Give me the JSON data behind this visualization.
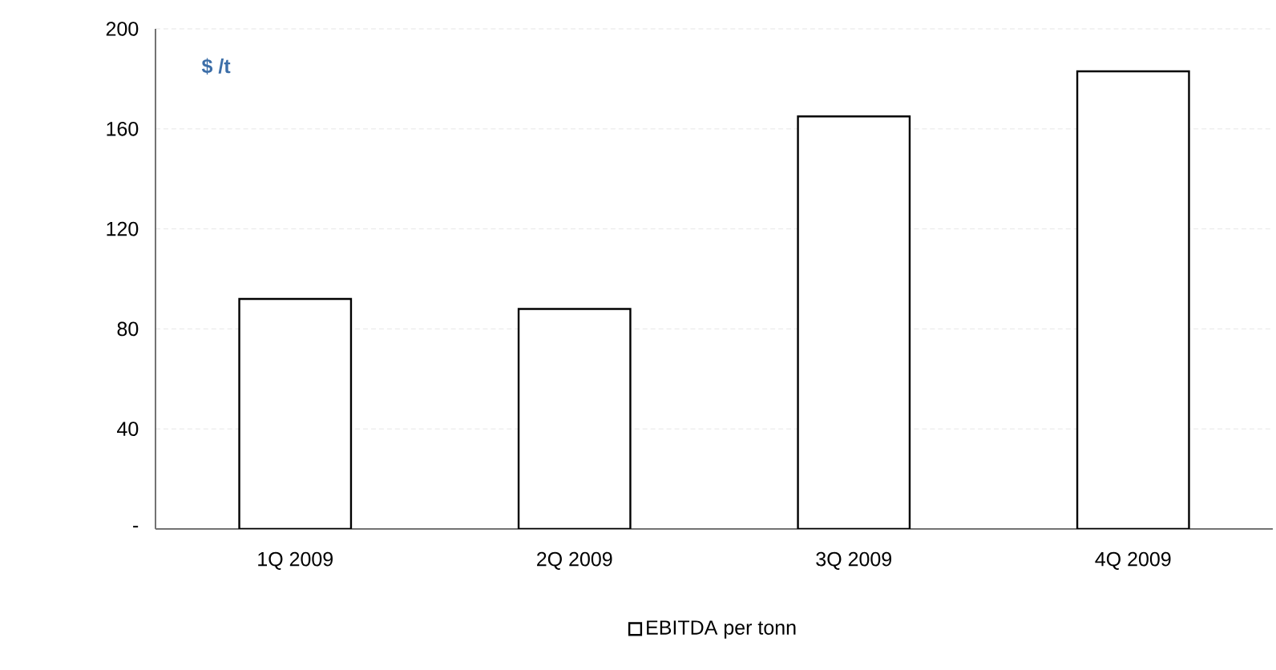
{
  "chart_data": {
    "type": "bar",
    "ylabel": "$ /t",
    "categories": [
      "1Q  2009",
      "2Q 2009",
      "3Q 2009",
      "4Q 2009"
    ],
    "series": [
      {
        "name": "EBITDA per tonn",
        "color": "#ffffff",
        "values": [
          92,
          88,
          165,
          183
        ]
      }
    ],
    "ylim": [
      0,
      200
    ],
    "yticks": [
      {
        "value": 0,
        "label": "-"
      },
      40,
      80,
      120,
      160,
      200
    ],
    "grid": "y",
    "legend": "bottom"
  }
}
